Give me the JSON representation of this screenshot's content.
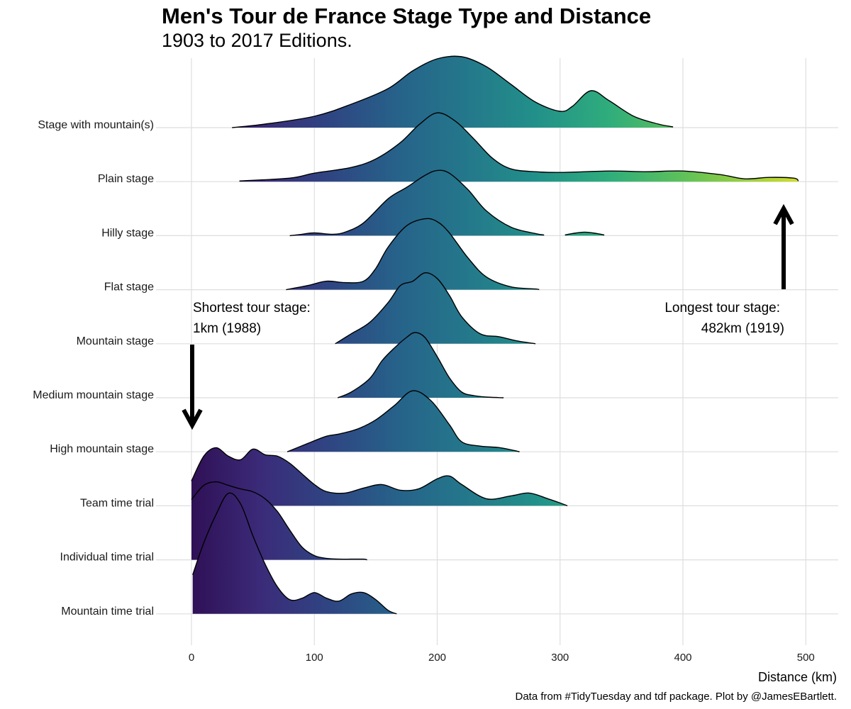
{
  "title": "Men's Tour de France Stage Type and Distance",
  "subtitle": "1903 to 2017 Editions.",
  "xlabel": "Distance (km)",
  "caption": "Data from #TidyTuesday and tdf package. Plot by @JamesEBartlett.",
  "colors": {
    "viridis_start": "#440154",
    "viridis_end": "#fde725",
    "outline": "#000000",
    "grid": "#dedede"
  },
  "annotations": {
    "shortest_line1": "Shortest tour stage:",
    "shortest_line2": "1km (1988)",
    "longest_line1": "Longest tour stage:",
    "longest_line2": "482km (1919)"
  },
  "chart_data": {
    "type": "ridgeline",
    "title": "Men's Tour de France Stage Type and Distance",
    "subtitle": "1903 to 2017 Editions.",
    "xlabel": "Distance (km)",
    "ylabel": "",
    "xlim": [
      -30,
      530
    ],
    "xticks": [
      0,
      100,
      200,
      300,
      400,
      500
    ],
    "grid": true,
    "fill": "viridis gradient by distance",
    "annotations": [
      {
        "text": "Shortest tour stage: 1km (1988)",
        "x": 1,
        "arrow": "down"
      },
      {
        "text": "Longest tour stage: 482km (1919)",
        "x": 482,
        "arrow": "up"
      }
    ],
    "series": [
      {
        "name": "Stage with mountain(s)",
        "x": [
          33,
          60,
          100,
          130,
          160,
          180,
          200,
          220,
          240,
          260,
          280,
          300,
          310,
          325,
          340,
          360,
          380,
          392
        ],
        "density": [
          0,
          0.05,
          0.16,
          0.33,
          0.55,
          0.8,
          0.97,
          1.0,
          0.86,
          0.61,
          0.36,
          0.23,
          0.3,
          0.52,
          0.38,
          0.16,
          0.05,
          0.01
        ],
        "segments": [
          [
            33,
            392
          ]
        ]
      },
      {
        "name": "Plain stage",
        "x": [
          39,
          80,
          100,
          130,
          150,
          170,
          185,
          200,
          215,
          230,
          245,
          260,
          280,
          300,
          340,
          370,
          400,
          430,
          450,
          470,
          490,
          494
        ],
        "density": [
          0.01,
          0.05,
          0.12,
          0.2,
          0.32,
          0.55,
          0.8,
          0.97,
          0.85,
          0.6,
          0.33,
          0.18,
          0.14,
          0.13,
          0.15,
          0.14,
          0.15,
          0.1,
          0.04,
          0.06,
          0.05,
          0.01
        ],
        "segments": [
          [
            39,
            494
          ]
        ]
      },
      {
        "name": "Hilly stage",
        "x": [
          80,
          90,
          100,
          115,
          125,
          140,
          160,
          175,
          190,
          200,
          210,
          225,
          240,
          260,
          280,
          287,
          304,
          310,
          320,
          330,
          336
        ],
        "density": [
          0,
          0.02,
          0.04,
          0.02,
          0.05,
          0.18,
          0.52,
          0.68,
          0.85,
          0.92,
          0.88,
          0.65,
          0.35,
          0.12,
          0.03,
          0.01,
          0.01,
          0.03,
          0.05,
          0.03,
          0.01
        ],
        "segments": [
          [
            80,
            287
          ],
          [
            304,
            336
          ]
        ]
      },
      {
        "name": "Flat stage",
        "x": [
          77,
          95,
          110,
          125,
          140,
          150,
          160,
          175,
          190,
          200,
          210,
          225,
          240,
          260,
          280,
          283
        ],
        "density": [
          0,
          0.06,
          0.12,
          0.1,
          0.12,
          0.3,
          0.6,
          0.9,
          1.0,
          0.96,
          0.8,
          0.45,
          0.18,
          0.04,
          0.01,
          0
        ],
        "segments": [
          [
            77,
            283
          ]
        ]
      },
      {
        "name": "Mountain stage",
        "x": [
          117,
          130,
          145,
          160,
          170,
          180,
          190,
          200,
          210,
          220,
          235,
          250,
          265,
          280
        ],
        "density": [
          0,
          0.14,
          0.3,
          0.58,
          0.82,
          0.88,
          1.0,
          0.92,
          0.68,
          0.38,
          0.14,
          0.1,
          0.04,
          0
        ],
        "segments": [
          [
            117,
            280
          ]
        ]
      },
      {
        "name": "Medium mountain stage",
        "x": [
          119,
          130,
          145,
          155,
          165,
          175,
          182,
          190,
          200,
          210,
          220,
          230,
          240,
          254
        ],
        "density": [
          0,
          0.08,
          0.27,
          0.52,
          0.7,
          0.85,
          0.92,
          0.85,
          0.58,
          0.28,
          0.08,
          0.03,
          0.01,
          0
        ],
        "segments": [
          [
            119,
            254
          ]
        ]
      },
      {
        "name": "High mountain stage",
        "x": [
          78,
          95,
          110,
          120,
          135,
          150,
          165,
          180,
          195,
          210,
          220,
          235,
          250,
          262,
          267
        ],
        "density": [
          0,
          0.12,
          0.22,
          0.25,
          0.32,
          0.45,
          0.65,
          0.86,
          0.72,
          0.38,
          0.14,
          0.08,
          0.06,
          0.02,
          0
        ],
        "segments": [
          [
            78,
            267
          ]
        ]
      },
      {
        "name": "Team time trial",
        "x": [
          0,
          10,
          20,
          30,
          40,
          50,
          60,
          70,
          80,
          90,
          100,
          110,
          125,
          140,
          155,
          170,
          185,
          200,
          210,
          220,
          240,
          260,
          275,
          290,
          300,
          306
        ],
        "density": [
          0.35,
          0.7,
          0.82,
          0.7,
          0.65,
          0.8,
          0.72,
          0.7,
          0.6,
          0.45,
          0.3,
          0.2,
          0.18,
          0.25,
          0.3,
          0.22,
          0.24,
          0.38,
          0.42,
          0.3,
          0.1,
          0.14,
          0.18,
          0.1,
          0.04,
          0
        ],
        "segments": [
          [
            0,
            306
          ]
        ]
      },
      {
        "name": "Individual time trial",
        "x": [
          0,
          10,
          20,
          30,
          40,
          50,
          60,
          70,
          80,
          90,
          100,
          110,
          120,
          130,
          140,
          143
        ],
        "density": [
          0.85,
          1.05,
          1.1,
          1.05,
          1.0,
          0.96,
          0.86,
          0.68,
          0.42,
          0.18,
          0.06,
          0.02,
          0.01,
          0.01,
          0.01,
          0
        ],
        "segments": [
          [
            0,
            143
          ]
        ]
      },
      {
        "name": "Mountain time trial",
        "x": [
          1,
          10,
          20,
          30,
          40,
          50,
          60,
          70,
          80,
          90,
          100,
          110,
          120,
          130,
          140,
          150,
          160,
          167
        ],
        "density": [
          0.55,
          1.0,
          1.4,
          1.7,
          1.55,
          1.1,
          0.7,
          0.38,
          0.2,
          0.22,
          0.3,
          0.22,
          0.18,
          0.28,
          0.3,
          0.2,
          0.05,
          0
        ],
        "segments": [
          [
            1,
            167
          ]
        ]
      }
    ]
  }
}
